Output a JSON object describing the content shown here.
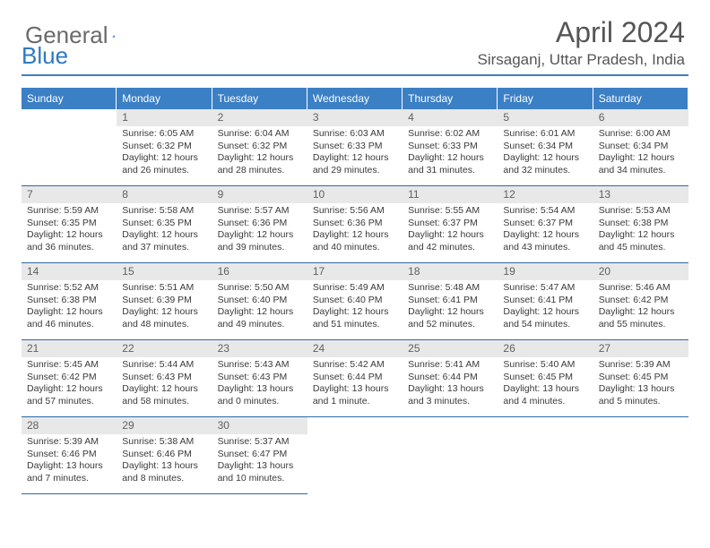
{
  "logo": {
    "text_a": "General",
    "text_b": "Blue"
  },
  "title": "April 2024",
  "location": "Sirsaganj, Uttar Pradesh, India",
  "colors": {
    "header_bg": "#3b7fc4",
    "header_text": "#ffffff",
    "daynum_bg": "#e8e8e8",
    "daynum_text": "#606060",
    "rule": "#2f6aa8",
    "body_text": "#3a3a3a",
    "title_text": "#555555"
  },
  "weekdays": [
    "Sunday",
    "Monday",
    "Tuesday",
    "Wednesday",
    "Thursday",
    "Friday",
    "Saturday"
  ],
  "weeks": [
    [
      {
        "day": "",
        "lines": []
      },
      {
        "day": "1",
        "lines": [
          "Sunrise: 6:05 AM",
          "Sunset: 6:32 PM",
          "Daylight: 12 hours",
          "and 26 minutes."
        ]
      },
      {
        "day": "2",
        "lines": [
          "Sunrise: 6:04 AM",
          "Sunset: 6:32 PM",
          "Daylight: 12 hours",
          "and 28 minutes."
        ]
      },
      {
        "day": "3",
        "lines": [
          "Sunrise: 6:03 AM",
          "Sunset: 6:33 PM",
          "Daylight: 12 hours",
          "and 29 minutes."
        ]
      },
      {
        "day": "4",
        "lines": [
          "Sunrise: 6:02 AM",
          "Sunset: 6:33 PM",
          "Daylight: 12 hours",
          "and 31 minutes."
        ]
      },
      {
        "day": "5",
        "lines": [
          "Sunrise: 6:01 AM",
          "Sunset: 6:34 PM",
          "Daylight: 12 hours",
          "and 32 minutes."
        ]
      },
      {
        "day": "6",
        "lines": [
          "Sunrise: 6:00 AM",
          "Sunset: 6:34 PM",
          "Daylight: 12 hours",
          "and 34 minutes."
        ]
      }
    ],
    [
      {
        "day": "7",
        "lines": [
          "Sunrise: 5:59 AM",
          "Sunset: 6:35 PM",
          "Daylight: 12 hours",
          "and 36 minutes."
        ]
      },
      {
        "day": "8",
        "lines": [
          "Sunrise: 5:58 AM",
          "Sunset: 6:35 PM",
          "Daylight: 12 hours",
          "and 37 minutes."
        ]
      },
      {
        "day": "9",
        "lines": [
          "Sunrise: 5:57 AM",
          "Sunset: 6:36 PM",
          "Daylight: 12 hours",
          "and 39 minutes."
        ]
      },
      {
        "day": "10",
        "lines": [
          "Sunrise: 5:56 AM",
          "Sunset: 6:36 PM",
          "Daylight: 12 hours",
          "and 40 minutes."
        ]
      },
      {
        "day": "11",
        "lines": [
          "Sunrise: 5:55 AM",
          "Sunset: 6:37 PM",
          "Daylight: 12 hours",
          "and 42 minutes."
        ]
      },
      {
        "day": "12",
        "lines": [
          "Sunrise: 5:54 AM",
          "Sunset: 6:37 PM",
          "Daylight: 12 hours",
          "and 43 minutes."
        ]
      },
      {
        "day": "13",
        "lines": [
          "Sunrise: 5:53 AM",
          "Sunset: 6:38 PM",
          "Daylight: 12 hours",
          "and 45 minutes."
        ]
      }
    ],
    [
      {
        "day": "14",
        "lines": [
          "Sunrise: 5:52 AM",
          "Sunset: 6:38 PM",
          "Daylight: 12 hours",
          "and 46 minutes."
        ]
      },
      {
        "day": "15",
        "lines": [
          "Sunrise: 5:51 AM",
          "Sunset: 6:39 PM",
          "Daylight: 12 hours",
          "and 48 minutes."
        ]
      },
      {
        "day": "16",
        "lines": [
          "Sunrise: 5:50 AM",
          "Sunset: 6:40 PM",
          "Daylight: 12 hours",
          "and 49 minutes."
        ]
      },
      {
        "day": "17",
        "lines": [
          "Sunrise: 5:49 AM",
          "Sunset: 6:40 PM",
          "Daylight: 12 hours",
          "and 51 minutes."
        ]
      },
      {
        "day": "18",
        "lines": [
          "Sunrise: 5:48 AM",
          "Sunset: 6:41 PM",
          "Daylight: 12 hours",
          "and 52 minutes."
        ]
      },
      {
        "day": "19",
        "lines": [
          "Sunrise: 5:47 AM",
          "Sunset: 6:41 PM",
          "Daylight: 12 hours",
          "and 54 minutes."
        ]
      },
      {
        "day": "20",
        "lines": [
          "Sunrise: 5:46 AM",
          "Sunset: 6:42 PM",
          "Daylight: 12 hours",
          "and 55 minutes."
        ]
      }
    ],
    [
      {
        "day": "21",
        "lines": [
          "Sunrise: 5:45 AM",
          "Sunset: 6:42 PM",
          "Daylight: 12 hours",
          "and 57 minutes."
        ]
      },
      {
        "day": "22",
        "lines": [
          "Sunrise: 5:44 AM",
          "Sunset: 6:43 PM",
          "Daylight: 12 hours",
          "and 58 minutes."
        ]
      },
      {
        "day": "23",
        "lines": [
          "Sunrise: 5:43 AM",
          "Sunset: 6:43 PM",
          "Daylight: 13 hours",
          "and 0 minutes."
        ]
      },
      {
        "day": "24",
        "lines": [
          "Sunrise: 5:42 AM",
          "Sunset: 6:44 PM",
          "Daylight: 13 hours",
          "and 1 minute."
        ]
      },
      {
        "day": "25",
        "lines": [
          "Sunrise: 5:41 AM",
          "Sunset: 6:44 PM",
          "Daylight: 13 hours",
          "and 3 minutes."
        ]
      },
      {
        "day": "26",
        "lines": [
          "Sunrise: 5:40 AM",
          "Sunset: 6:45 PM",
          "Daylight: 13 hours",
          "and 4 minutes."
        ]
      },
      {
        "day": "27",
        "lines": [
          "Sunrise: 5:39 AM",
          "Sunset: 6:45 PM",
          "Daylight: 13 hours",
          "and 5 minutes."
        ]
      }
    ],
    [
      {
        "day": "28",
        "lines": [
          "Sunrise: 5:39 AM",
          "Sunset: 6:46 PM",
          "Daylight: 13 hours",
          "and 7 minutes."
        ]
      },
      {
        "day": "29",
        "lines": [
          "Sunrise: 5:38 AM",
          "Sunset: 6:46 PM",
          "Daylight: 13 hours",
          "and 8 minutes."
        ]
      },
      {
        "day": "30",
        "lines": [
          "Sunrise: 5:37 AM",
          "Sunset: 6:47 PM",
          "Daylight: 13 hours",
          "and 10 minutes."
        ]
      },
      {
        "day": "",
        "lines": []
      },
      {
        "day": "",
        "lines": []
      },
      {
        "day": "",
        "lines": []
      },
      {
        "day": "",
        "lines": []
      }
    ]
  ]
}
